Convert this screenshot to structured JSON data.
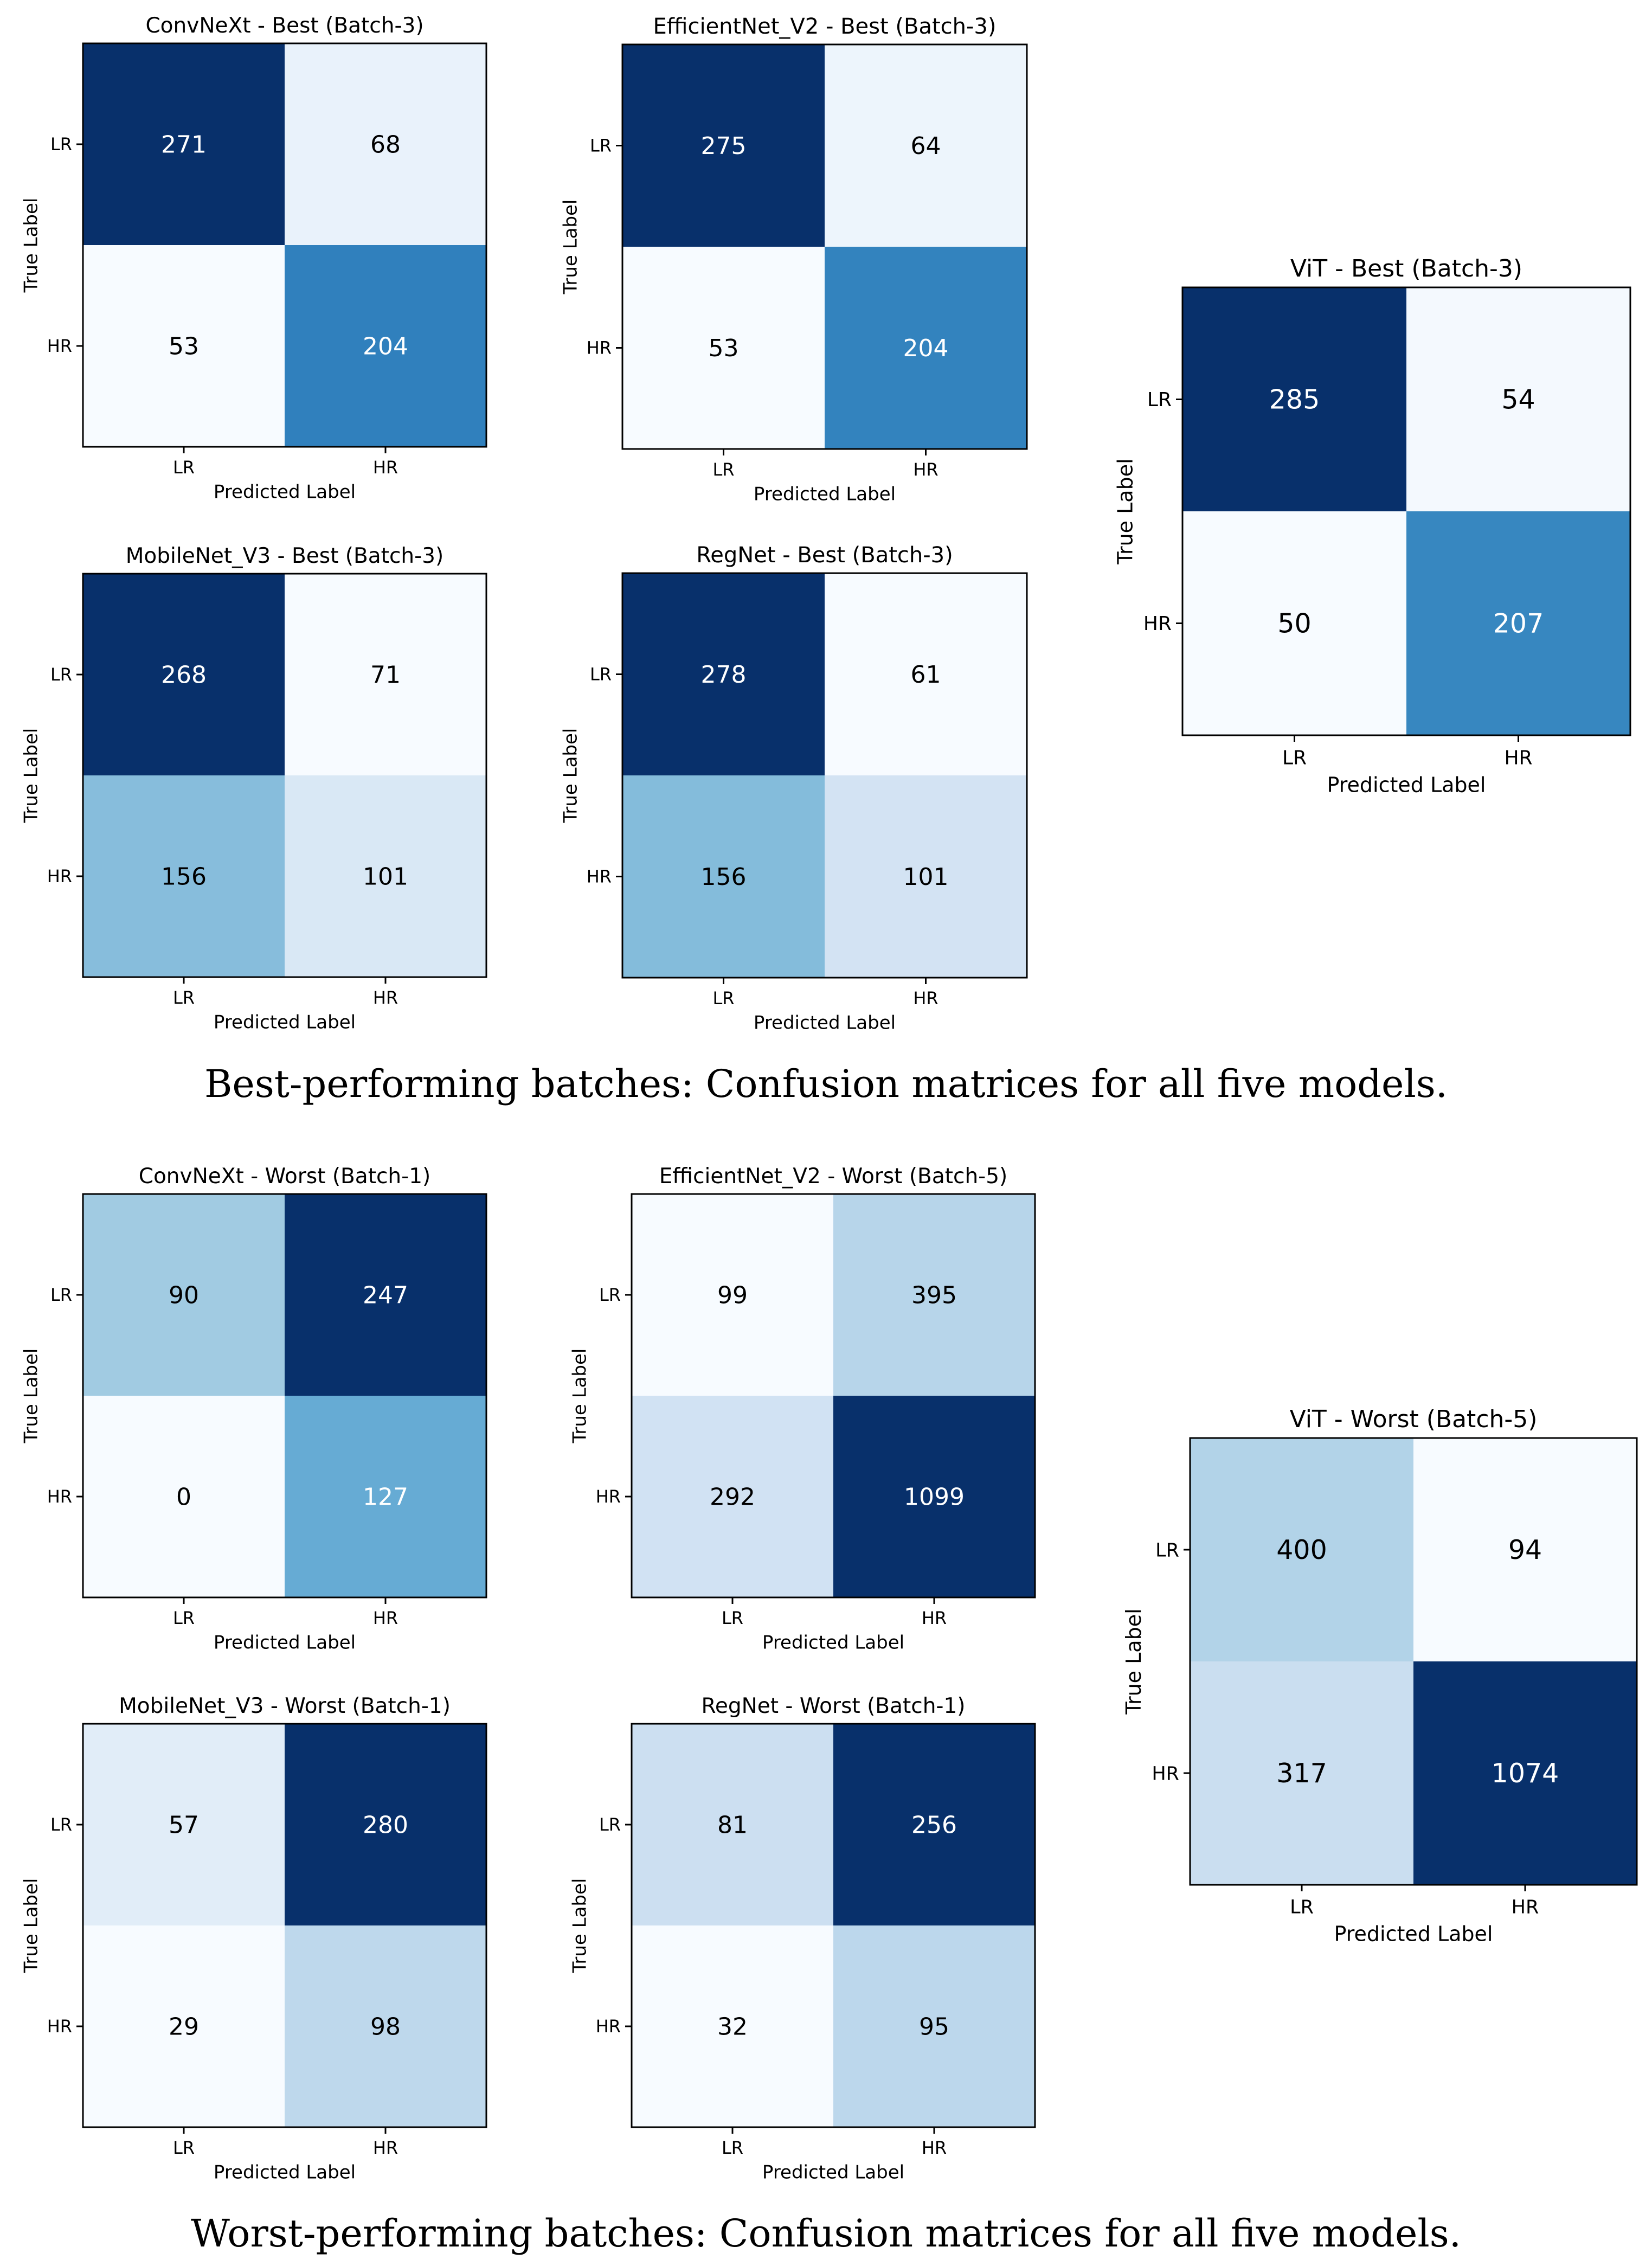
{
  "sections": [
    {
      "caption": "Best-performing batches: Confusion matrices for all five models.",
      "matrices": [
        {
          "title": "ConvNeXt - Best (Batch-3)",
          "values": [
            [
              271,
              68
            ],
            [
              53,
              204
            ]
          ]
        },
        {
          "title": "EfficientNet_V2 - Best (Batch-3)",
          "values": [
            [
              275,
              64
            ],
            [
              53,
              204
            ]
          ]
        },
        {
          "title": "MobileNet_V3 - Best (Batch-3)",
          "values": [
            [
              268,
              71
            ],
            [
              156,
              101
            ]
          ]
        },
        {
          "title": "RegNet - Best (Batch-3)",
          "values": [
            [
              278,
              61
            ],
            [
              156,
              101
            ]
          ]
        },
        {
          "title": "ViT - Best (Batch-3)",
          "values": [
            [
              285,
              54
            ],
            [
              50,
              207
            ]
          ]
        }
      ]
    },
    {
      "caption": "Worst-performing batches: Confusion matrices for all five models.",
      "matrices": [
        {
          "title": "ConvNeXt - Worst (Batch-1)",
          "values": [
            [
              90,
              247
            ],
            [
              0,
              127
            ]
          ]
        },
        {
          "title": "EfficientNet_V2 - Worst (Batch-5)",
          "values": [
            [
              99,
              395
            ],
            [
              292,
              1099
            ]
          ]
        },
        {
          "title": "MobileNet_V3 - Worst (Batch-1)",
          "values": [
            [
              57,
              280
            ],
            [
              29,
              98
            ]
          ]
        },
        {
          "title": "RegNet - Worst (Batch-1)",
          "values": [
            [
              81,
              256
            ],
            [
              32,
              95
            ]
          ]
        },
        {
          "title": "ViT - Worst (Batch-5)",
          "values": [
            [
              400,
              94
            ],
            [
              317,
              1074
            ]
          ]
        }
      ]
    }
  ],
  "axis": {
    "class_labels": [
      "LR",
      "HR"
    ],
    "xlabel": "Predicted Label",
    "ylabel": "True Label"
  },
  "colormap": [
    "#f7fbff",
    "#deebf7",
    "#c6dbef",
    "#9ecae1",
    "#6baed6",
    "#4292c6",
    "#2171b5",
    "#08519c",
    "#08306b"
  ],
  "chart_data": [
    {
      "type": "heatmap",
      "title": "ConvNeXt - Best (Batch-3)",
      "xlabel": "Predicted Label",
      "ylabel": "True Label",
      "x": [
        "LR",
        "HR"
      ],
      "y": [
        "LR",
        "HR"
      ],
      "values": [
        [
          271,
          68
        ],
        [
          53,
          204
        ]
      ]
    },
    {
      "type": "heatmap",
      "title": "EfficientNet_V2 - Best (Batch-3)",
      "xlabel": "Predicted Label",
      "ylabel": "True Label",
      "x": [
        "LR",
        "HR"
      ],
      "y": [
        "LR",
        "HR"
      ],
      "values": [
        [
          275,
          64
        ],
        [
          53,
          204
        ]
      ]
    },
    {
      "type": "heatmap",
      "title": "MobileNet_V3 - Best (Batch-3)",
      "xlabel": "Predicted Label",
      "ylabel": "True Label",
      "x": [
        "LR",
        "HR"
      ],
      "y": [
        "LR",
        "HR"
      ],
      "values": [
        [
          268,
          71
        ],
        [
          156,
          101
        ]
      ]
    },
    {
      "type": "heatmap",
      "title": "RegNet - Best (Batch-3)",
      "xlabel": "Predicted Label",
      "ylabel": "True Label",
      "x": [
        "LR",
        "HR"
      ],
      "y": [
        "LR",
        "HR"
      ],
      "values": [
        [
          278,
          61
        ],
        [
          156,
          101
        ]
      ]
    },
    {
      "type": "heatmap",
      "title": "ViT - Best (Batch-3)",
      "xlabel": "Predicted Label",
      "ylabel": "True Label",
      "x": [
        "LR",
        "HR"
      ],
      "y": [
        "LR",
        "HR"
      ],
      "values": [
        [
          285,
          54
        ],
        [
          50,
          207
        ]
      ]
    },
    {
      "type": "heatmap",
      "title": "ConvNeXt - Worst (Batch-1)",
      "xlabel": "Predicted Label",
      "ylabel": "True Label",
      "x": [
        "LR",
        "HR"
      ],
      "y": [
        "LR",
        "HR"
      ],
      "values": [
        [
          90,
          247
        ],
        [
          0,
          127
        ]
      ]
    },
    {
      "type": "heatmap",
      "title": "EfficientNet_V2 - Worst (Batch-5)",
      "xlabel": "Predicted Label",
      "ylabel": "True Label",
      "x": [
        "LR",
        "HR"
      ],
      "y": [
        "LR",
        "HR"
      ],
      "values": [
        [
          99,
          395
        ],
        [
          292,
          1099
        ]
      ]
    },
    {
      "type": "heatmap",
      "title": "MobileNet_V3 - Worst (Batch-1)",
      "xlabel": "Predicted Label",
      "ylabel": "True Label",
      "x": [
        "LR",
        "HR"
      ],
      "y": [
        "LR",
        "HR"
      ],
      "values": [
        [
          57,
          280
        ],
        [
          29,
          98
        ]
      ]
    },
    {
      "type": "heatmap",
      "title": "RegNet - Worst (Batch-1)",
      "xlabel": "Predicted Label",
      "ylabel": "True Label",
      "x": [
        "LR",
        "HR"
      ],
      "y": [
        "LR",
        "HR"
      ],
      "values": [
        [
          81,
          256
        ],
        [
          32,
          95
        ]
      ]
    },
    {
      "type": "heatmap",
      "title": "ViT - Worst (Batch-5)",
      "xlabel": "Predicted Label",
      "ylabel": "True Label",
      "x": [
        "LR",
        "HR"
      ],
      "y": [
        "LR",
        "HR"
      ],
      "values": [
        [
          400,
          94
        ],
        [
          317,
          1074
        ]
      ]
    }
  ]
}
